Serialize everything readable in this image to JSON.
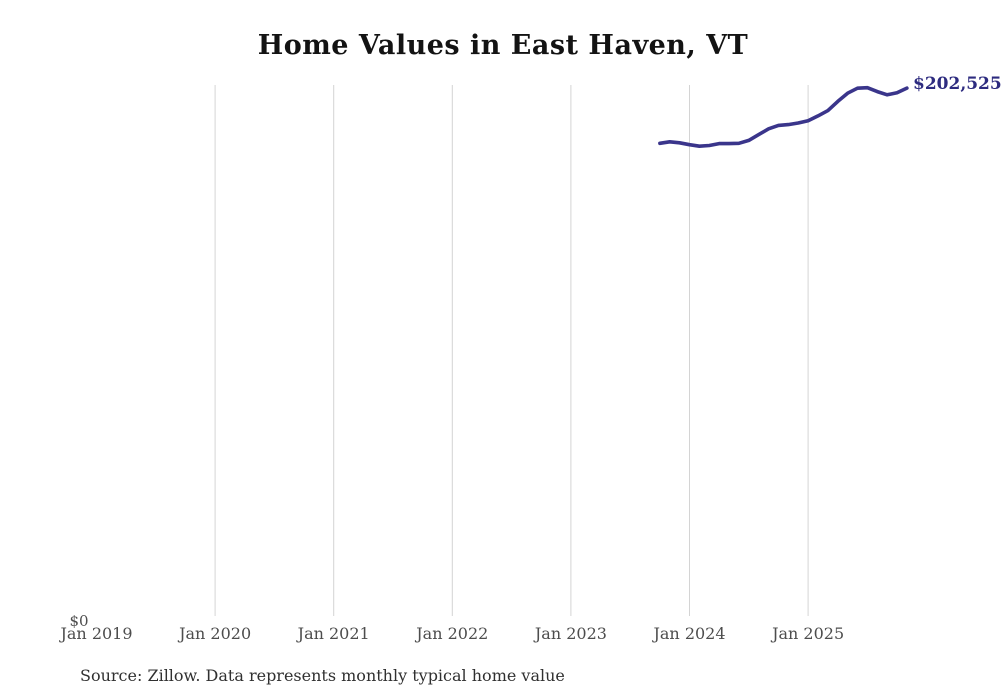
{
  "header": {
    "title": "Home Values in East Haven, VT"
  },
  "footer": {
    "source_note": "Source: Zillow. Data represents monthly typical home value"
  },
  "colors": {
    "line": "#3a358b",
    "gridline": "#d4d4d4",
    "axis_label": "#4d4d4d",
    "end_label": "#2d2b7f",
    "title": "#131313",
    "background": "#ffffff"
  },
  "chart_data": {
    "type": "line",
    "title": "Home Values in East Haven, VT",
    "xlabel": "",
    "ylabel": "",
    "ylim": [
      0,
      203500
    ],
    "grid": "vertical-only",
    "legend": "none",
    "x": [
      "2023-10",
      "2023-11",
      "2023-12",
      "2024-01",
      "2024-02",
      "2024-03",
      "2024-04",
      "2024-05",
      "2024-06",
      "2024-07",
      "2024-08",
      "2024-09",
      "2024-10",
      "2024-11",
      "2024-12",
      "2025-01",
      "2025-02",
      "2025-03",
      "2025-04",
      "2025-05",
      "2025-06",
      "2025-07",
      "2025-08",
      "2025-09",
      "2025-10",
      "2025-11"
    ],
    "series": [
      {
        "name": "Monthly typical home value",
        "values": [
          181600,
          182200,
          181800,
          181100,
          180500,
          180800,
          181500,
          181500,
          181600,
          182700,
          184900,
          187100,
          188400,
          188700,
          189300,
          190200,
          192000,
          194000,
          197500,
          200600,
          202500,
          202700,
          201200,
          200000,
          200800,
          202525
        ]
      }
    ],
    "x_ticks": [
      {
        "label": "Jan 2019",
        "year": 2019,
        "gridline": false
      },
      {
        "label": "Jan 2020",
        "year": 2020,
        "gridline": true
      },
      {
        "label": "Jan 2021",
        "year": 2021,
        "gridline": true
      },
      {
        "label": "Jan 2022",
        "year": 2022,
        "gridline": true
      },
      {
        "label": "Jan 2023",
        "year": 2023,
        "gridline": true
      },
      {
        "label": "Jan 2024",
        "year": 2024,
        "gridline": true
      },
      {
        "label": "Jan 2025",
        "year": 2025,
        "gridline": true
      }
    ],
    "y_tick_labels": [
      "$0"
    ],
    "end_label": "$202,525"
  }
}
